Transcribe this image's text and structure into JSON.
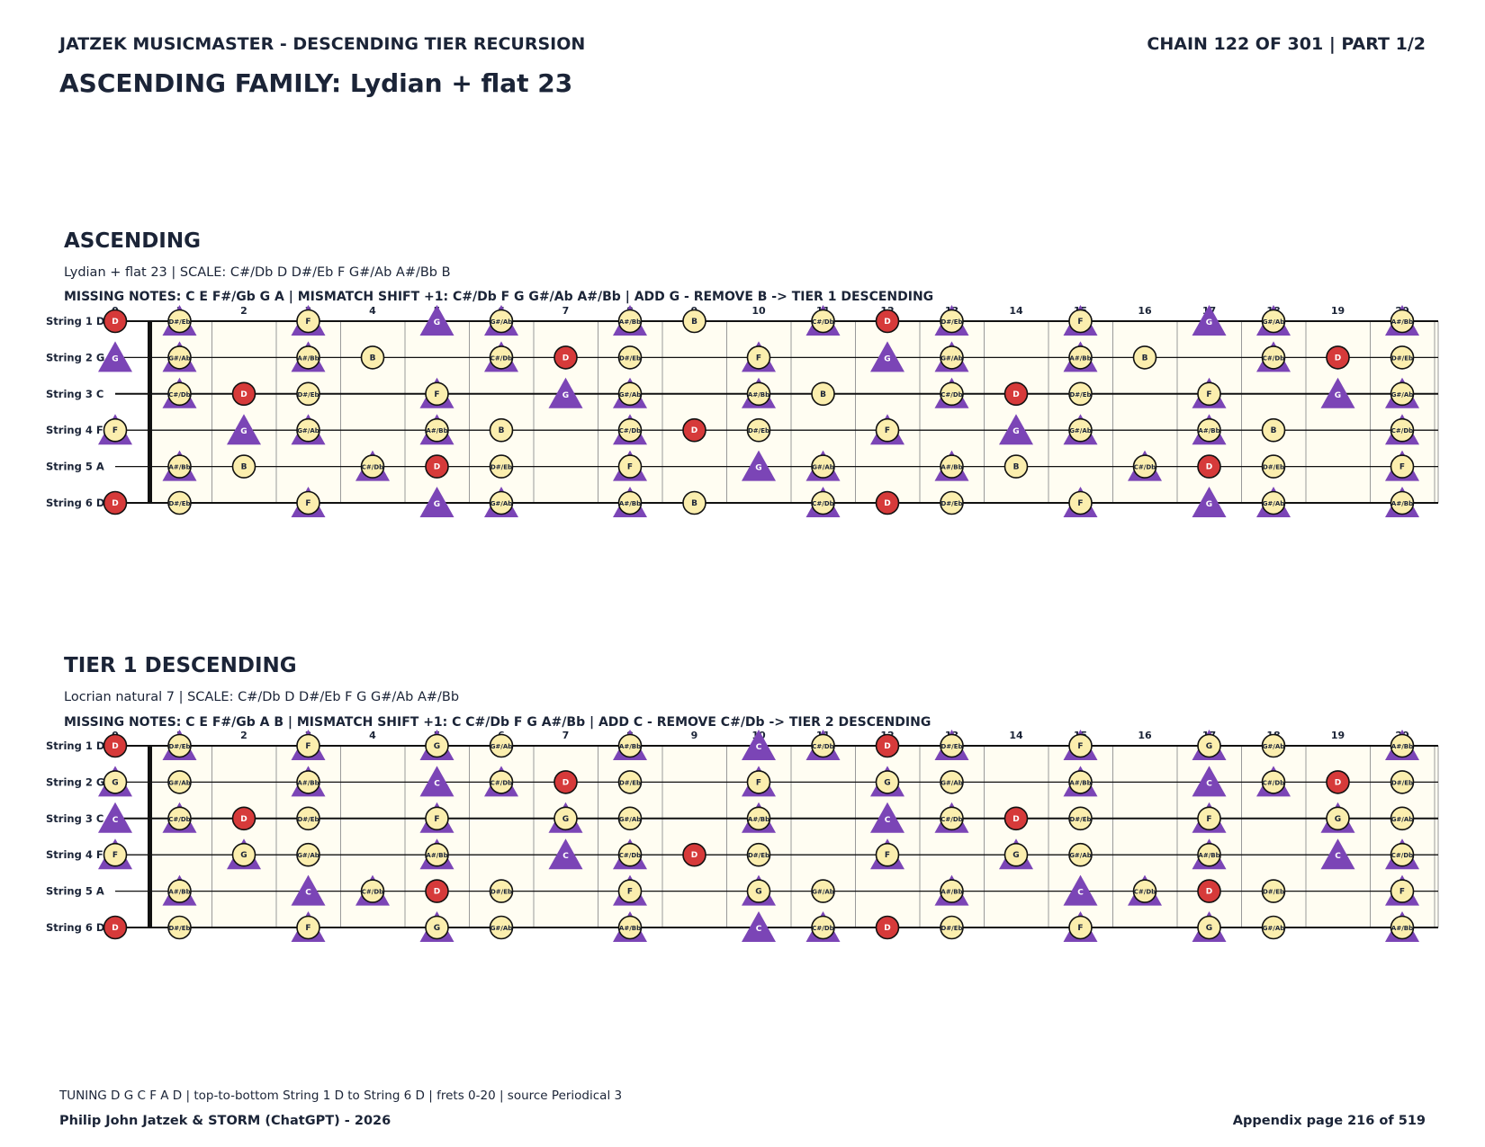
{
  "header": {
    "left": "JATZEK MUSICMASTER - DESCENDING TIER RECURSION",
    "right": "CHAIN 122 OF 301  |  PART 1/2",
    "family": "ASCENDING FAMILY: Lydian + flat 23"
  },
  "legend_colors": {
    "root": "#d63a3a",
    "scale": "#fbeeae",
    "shift": "#7b45b6",
    "board_bg": "#fffdf2"
  },
  "strings": [
    "String 1 D",
    "String 2 G",
    "String 3 C",
    "String 4 F",
    "String 5 A",
    "String 6 D"
  ],
  "fret_numbers": [
    "0",
    "1",
    "2",
    "3",
    "4",
    "5",
    "6",
    "7",
    "8",
    "9",
    "10",
    "11",
    "12",
    "13",
    "14",
    "15",
    "16",
    "17",
    "18",
    "19",
    "20"
  ],
  "sections": [
    {
      "title": "ASCENDING",
      "subtitle": "Lydian + flat 23  |  SCALE: C#/Db D D#/Eb F G#/Ab A#/Bb B",
      "note": "MISSING NOTES: C E F#/Gb G A  |  MISMATCH SHIFT +1: C#/Db F G G#/Ab A#/Bb  |  ADD G - REMOVE B -> TIER 1 DESCENDING",
      "rows": [
        [
          [
            "D",
            "R"
          ],
          [
            "D#/Eb",
            "S",
            "T"
          ],
          null,
          [
            "F",
            "S",
            "T"
          ],
          null,
          [
            "G",
            "T"
          ],
          [
            "G#/Ab",
            "S",
            "T"
          ],
          null,
          [
            "A#/Bb",
            "S",
            "T"
          ],
          [
            "B",
            "S"
          ],
          null,
          [
            "C#/Db",
            "S",
            "T"
          ],
          [
            "D",
            "R"
          ],
          [
            "D#/Eb",
            "S",
            "T"
          ],
          null,
          [
            "F",
            "S",
            "T"
          ],
          null,
          [
            "G",
            "T"
          ],
          [
            "G#/Ab",
            "S",
            "T"
          ],
          null,
          [
            "A#/Bb",
            "S",
            "T"
          ]
        ],
        [
          [
            "G",
            "T"
          ],
          [
            "G#/Ab",
            "S",
            "T"
          ],
          null,
          [
            "A#/Bb",
            "S",
            "T"
          ],
          [
            "B",
            "S"
          ],
          null,
          [
            "C#/Db",
            "S",
            "T"
          ],
          [
            "D",
            "R"
          ],
          [
            "D#/Eb",
            "S"
          ],
          null,
          [
            "F",
            "S",
            "T"
          ],
          null,
          [
            "G",
            "T"
          ],
          [
            "G#/Ab",
            "S",
            "T"
          ],
          null,
          [
            "A#/Bb",
            "S",
            "T"
          ],
          [
            "B",
            "S"
          ],
          null,
          [
            "C#/Db",
            "S",
            "T"
          ],
          [
            "D",
            "R"
          ],
          [
            "D#/Eb",
            "S"
          ]
        ],
        [
          null,
          [
            "C#/Db",
            "S",
            "T"
          ],
          [
            "D",
            "R"
          ],
          [
            "D#/Eb",
            "S"
          ],
          null,
          [
            "F",
            "S",
            "T"
          ],
          null,
          [
            "G",
            "T"
          ],
          [
            "G#/Ab",
            "S",
            "T"
          ],
          null,
          [
            "A#/Bb",
            "S",
            "T"
          ],
          [
            "B",
            "S"
          ],
          null,
          [
            "C#/Db",
            "S",
            "T"
          ],
          [
            "D",
            "R"
          ],
          [
            "D#/Eb",
            "S"
          ],
          null,
          [
            "F",
            "S",
            "T"
          ],
          null,
          [
            "G",
            "T"
          ],
          [
            "G#/Ab",
            "S",
            "T"
          ]
        ],
        [
          [
            "F",
            "S",
            "T"
          ],
          null,
          [
            "G",
            "T"
          ],
          [
            "G#/Ab",
            "S",
            "T"
          ],
          null,
          [
            "A#/Bb",
            "S",
            "T"
          ],
          [
            "B",
            "S"
          ],
          null,
          [
            "C#/Db",
            "S",
            "T"
          ],
          [
            "D",
            "R"
          ],
          [
            "D#/Eb",
            "S"
          ],
          null,
          [
            "F",
            "S",
            "T"
          ],
          null,
          [
            "G",
            "T"
          ],
          [
            "G#/Ab",
            "S",
            "T"
          ],
          null,
          [
            "A#/Bb",
            "S",
            "T"
          ],
          [
            "B",
            "S"
          ],
          null,
          [
            "C#/Db",
            "S",
            "T"
          ]
        ],
        [
          null,
          [
            "A#/Bb",
            "S",
            "T"
          ],
          [
            "B",
            "S"
          ],
          null,
          [
            "C#/Db",
            "S",
            "T"
          ],
          [
            "D",
            "R"
          ],
          [
            "D#/Eb",
            "S"
          ],
          null,
          [
            "F",
            "S",
            "T"
          ],
          null,
          [
            "G",
            "T"
          ],
          [
            "G#/Ab",
            "S",
            "T"
          ],
          null,
          [
            "A#/Bb",
            "S",
            "T"
          ],
          [
            "B",
            "S"
          ],
          null,
          [
            "C#/Db",
            "S",
            "T"
          ],
          [
            "D",
            "R"
          ],
          [
            "D#/Eb",
            "S"
          ],
          null,
          [
            "F",
            "S",
            "T"
          ]
        ],
        [
          [
            "D",
            "R"
          ],
          [
            "D#/Eb",
            "S"
          ],
          null,
          [
            "F",
            "S",
            "T"
          ],
          null,
          [
            "G",
            "T"
          ],
          [
            "G#/Ab",
            "S",
            "T"
          ],
          null,
          [
            "A#/Bb",
            "S",
            "T"
          ],
          [
            "B",
            "S"
          ],
          null,
          [
            "C#/Db",
            "S",
            "T"
          ],
          [
            "D",
            "R"
          ],
          [
            "D#/Eb",
            "S"
          ],
          null,
          [
            "F",
            "S",
            "T"
          ],
          null,
          [
            "G",
            "T"
          ],
          [
            "G#/Ab",
            "S",
            "T"
          ],
          null,
          [
            "A#/Bb",
            "S",
            "T"
          ]
        ]
      ]
    },
    {
      "title": "TIER 1 DESCENDING",
      "subtitle": "Locrian natural 7  |  SCALE: C#/Db D D#/Eb F G G#/Ab A#/Bb",
      "note": "MISSING NOTES: C E F#/Gb A B  |  MISMATCH SHIFT +1: C C#/Db F G A#/Bb  |  ADD C - REMOVE C#/Db -> TIER 2 DESCENDING",
      "rows": [
        [
          [
            "D",
            "R"
          ],
          [
            "D#/Eb",
            "S",
            "T"
          ],
          null,
          [
            "F",
            "S",
            "T"
          ],
          null,
          [
            "G",
            "S",
            "T"
          ],
          [
            "G#/Ab",
            "S"
          ],
          null,
          [
            "A#/Bb",
            "S",
            "T"
          ],
          null,
          [
            "C",
            "T"
          ],
          [
            "C#/Db",
            "S",
            "T"
          ],
          [
            "D",
            "R"
          ],
          [
            "D#/Eb",
            "S",
            "T"
          ],
          null,
          [
            "F",
            "S",
            "T"
          ],
          null,
          [
            "G",
            "S",
            "T"
          ],
          [
            "G#/Ab",
            "S"
          ],
          null,
          [
            "A#/Bb",
            "S",
            "T"
          ]
        ],
        [
          [
            "G",
            "S",
            "T"
          ],
          [
            "G#/Ab",
            "S"
          ],
          null,
          [
            "A#/Bb",
            "S",
            "T"
          ],
          null,
          [
            "C",
            "T"
          ],
          [
            "C#/Db",
            "S",
            "T"
          ],
          [
            "D",
            "R"
          ],
          [
            "D#/Eb",
            "S"
          ],
          null,
          [
            "F",
            "S",
            "T"
          ],
          null,
          [
            "G",
            "S",
            "T"
          ],
          [
            "G#/Ab",
            "S"
          ],
          null,
          [
            "A#/Bb",
            "S",
            "T"
          ],
          null,
          [
            "C",
            "T"
          ],
          [
            "C#/Db",
            "S",
            "T"
          ],
          [
            "D",
            "R"
          ],
          [
            "D#/Eb",
            "S"
          ]
        ],
        [
          [
            "C",
            "T"
          ],
          [
            "C#/Db",
            "S",
            "T"
          ],
          [
            "D",
            "R"
          ],
          [
            "D#/Eb",
            "S"
          ],
          null,
          [
            "F",
            "S",
            "T"
          ],
          null,
          [
            "G",
            "S",
            "T"
          ],
          [
            "G#/Ab",
            "S"
          ],
          null,
          [
            "A#/Bb",
            "S",
            "T"
          ],
          null,
          [
            "C",
            "T"
          ],
          [
            "C#/Db",
            "S",
            "T"
          ],
          [
            "D",
            "R"
          ],
          [
            "D#/Eb",
            "S"
          ],
          null,
          [
            "F",
            "S",
            "T"
          ],
          null,
          [
            "G",
            "S",
            "T"
          ],
          [
            "G#/Ab",
            "S"
          ]
        ],
        [
          [
            "F",
            "S",
            "T"
          ],
          null,
          [
            "G",
            "S",
            "T"
          ],
          [
            "G#/Ab",
            "S"
          ],
          null,
          [
            "A#/Bb",
            "S",
            "T"
          ],
          null,
          [
            "C",
            "T"
          ],
          [
            "C#/Db",
            "S",
            "T"
          ],
          [
            "D",
            "R"
          ],
          [
            "D#/Eb",
            "S"
          ],
          null,
          [
            "F",
            "S",
            "T"
          ],
          null,
          [
            "G",
            "S",
            "T"
          ],
          [
            "G#/Ab",
            "S"
          ],
          null,
          [
            "A#/Bb",
            "S",
            "T"
          ],
          null,
          [
            "C",
            "T"
          ],
          [
            "C#/Db",
            "S",
            "T"
          ]
        ],
        [
          null,
          [
            "A#/Bb",
            "S",
            "T"
          ],
          null,
          [
            "C",
            "T"
          ],
          [
            "C#/Db",
            "S",
            "T"
          ],
          [
            "D",
            "R"
          ],
          [
            "D#/Eb",
            "S"
          ],
          null,
          [
            "F",
            "S",
            "T"
          ],
          null,
          [
            "G",
            "S",
            "T"
          ],
          [
            "G#/Ab",
            "S"
          ],
          null,
          [
            "A#/Bb",
            "S",
            "T"
          ],
          null,
          [
            "C",
            "T"
          ],
          [
            "C#/Db",
            "S",
            "T"
          ],
          [
            "D",
            "R"
          ],
          [
            "D#/Eb",
            "S"
          ],
          null,
          [
            "F",
            "S",
            "T"
          ]
        ],
        [
          [
            "D",
            "R"
          ],
          [
            "D#/Eb",
            "S"
          ],
          null,
          [
            "F",
            "S",
            "T"
          ],
          null,
          [
            "G",
            "S",
            "T"
          ],
          [
            "G#/Ab",
            "S"
          ],
          null,
          [
            "A#/Bb",
            "S",
            "T"
          ],
          null,
          [
            "C",
            "T"
          ],
          [
            "C#/Db",
            "S",
            "T"
          ],
          [
            "D",
            "R"
          ],
          [
            "D#/Eb",
            "S"
          ],
          null,
          [
            "F",
            "S",
            "T"
          ],
          null,
          [
            "G",
            "S",
            "T"
          ],
          [
            "G#/Ab",
            "S"
          ],
          null,
          [
            "A#/Bb",
            "S",
            "T"
          ]
        ]
      ]
    }
  ],
  "footer": {
    "note": "TUNING D G C F A D | top-to-bottom String 1 D to String 6 D | frets 0-20 | source Periodical 3",
    "left": "Philip John Jatzek & STORM (ChatGPT) - 2026",
    "right": "Appendix page 216 of 519"
  }
}
